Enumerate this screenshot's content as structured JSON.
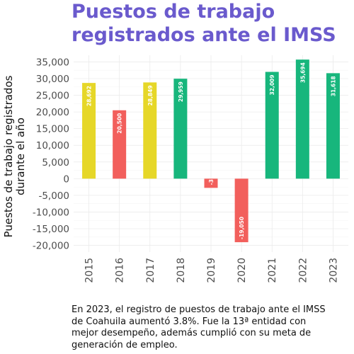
{
  "colors": {
    "yellow": "#e6d728",
    "red": "#f25f5c",
    "green": "#17b67c",
    "title": "#6a5acd"
  },
  "caption": "En 2023, el registro de puestos de trabajo ante el IMSS de Coahuila aumentó 3.8%. Fue la 13ª entidad con mejor desempeño, además cumplió con su meta de generación de empleo.",
  "chart_data": {
    "type": "bar",
    "title": "Puestos de trabajo registrados ante el IMSS",
    "xlabel": "",
    "ylabel": "Puestos de trabajo registrados durante el año",
    "categories": [
      "2015",
      "2016",
      "2017",
      "2018",
      "2019",
      "2020",
      "2021",
      "2022",
      "2023"
    ],
    "values": [
      28692,
      20500,
      28849,
      29959,
      -3,
      -19050,
      32009,
      35694,
      31618
    ],
    "data_labels": [
      "28,692",
      "20,500",
      "28,849",
      "29,959",
      "-3",
      "-19,050",
      "32,009",
      "35,694",
      "31,618"
    ],
    "bar_colors": [
      "yellow",
      "red",
      "yellow",
      "green",
      "red",
      "red",
      "green",
      "green",
      "green"
    ],
    "ylim": [
      -22000,
      37000
    ],
    "yticks": [
      35000,
      30000,
      25000,
      20000,
      15000,
      10000,
      5000,
      0,
      -5000,
      -10000,
      -15000,
      -20000
    ],
    "ytick_labels": [
      "35,000",
      "30,000",
      "25,000",
      "20,000",
      "15,000",
      "10,000",
      "5,000",
      "0",
      "-5,000",
      "-10,000",
      "-15,000",
      "-20,000"
    ],
    "grid": true,
    "legend": "none"
  }
}
